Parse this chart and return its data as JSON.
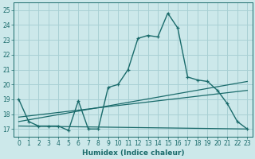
{
  "title": "",
  "xlabel": "Humidex (Indice chaleur)",
  "ylabel": "",
  "bg_color": "#cce8ea",
  "grid_color": "#a8d0d4",
  "line_color": "#1a6b6b",
  "xlim": [
    -0.5,
    23.5
  ],
  "ylim": [
    16.5,
    25.5
  ],
  "xticks": [
    0,
    1,
    2,
    3,
    4,
    5,
    6,
    7,
    8,
    9,
    10,
    11,
    12,
    13,
    14,
    15,
    16,
    17,
    18,
    19,
    20,
    21,
    22,
    23
  ],
  "yticks": [
    17,
    18,
    19,
    20,
    21,
    22,
    23,
    24,
    25
  ],
  "curve1_x": [
    0,
    1,
    2,
    3,
    4,
    5,
    6,
    7,
    8,
    9,
    10,
    11,
    12,
    13,
    14,
    15,
    16,
    17,
    18,
    19,
    20,
    21,
    22,
    23
  ],
  "curve1_y": [
    19.0,
    17.5,
    17.2,
    17.2,
    17.2,
    16.9,
    18.9,
    17.0,
    17.0,
    19.8,
    20.0,
    21.0,
    23.1,
    23.3,
    23.2,
    24.8,
    23.8,
    20.5,
    20.3,
    20.2,
    19.6,
    18.7,
    17.5,
    17.0
  ],
  "line2_x": [
    0,
    23
  ],
  "line2_y": [
    17.2,
    17.0
  ],
  "line3_x": [
    0,
    23
  ],
  "line3_y": [
    17.5,
    20.2
  ],
  "line4_x": [
    0,
    23
  ],
  "line4_y": [
    17.8,
    19.6
  ],
  "tick_fontsize": 5.5,
  "xlabel_fontsize": 6.5
}
